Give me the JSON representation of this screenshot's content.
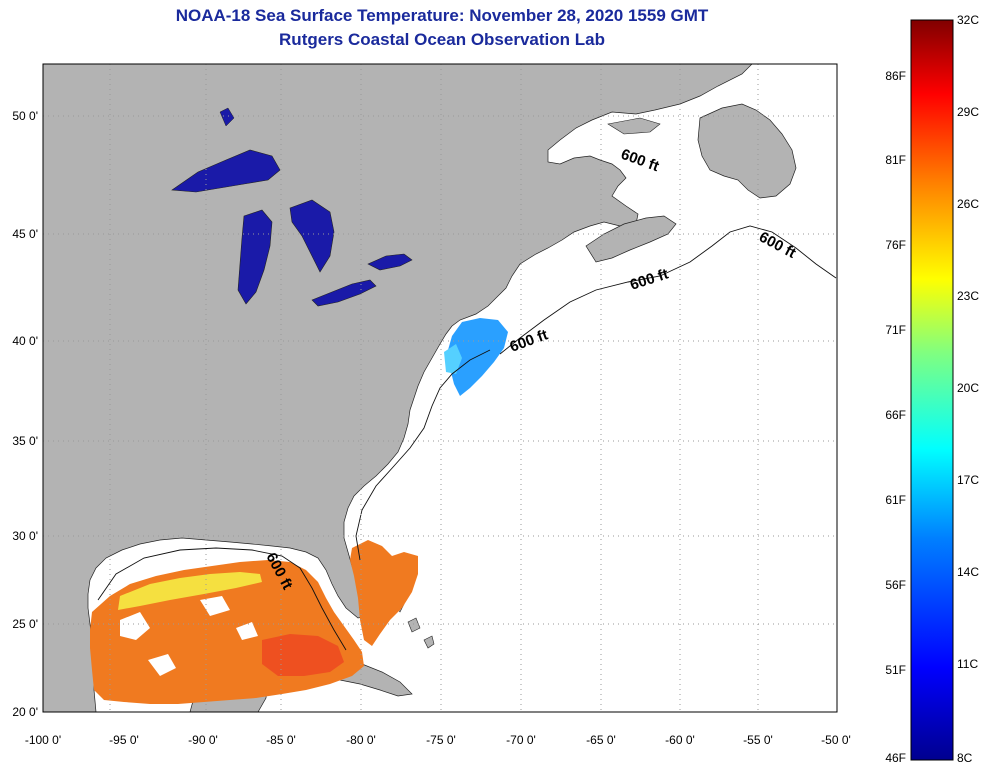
{
  "header": {
    "title": "NOAA-18 Sea Surface Temperature:  November 28, 2020 1559 GMT",
    "subtitle": "Rutgers Coastal Ocean Observation Lab"
  },
  "map": {
    "lon_range": [
      -100,
      -50
    ],
    "lat_range": [
      20,
      52.5
    ],
    "lon_ticks": [
      "-100 0'",
      "-95 0'",
      "-90 0'",
      "-85 0'",
      "-80 0'",
      "-75 0'",
      "-70 0'",
      "-65 0'",
      "-60 0'",
      "-55 0'",
      "-50 0'"
    ],
    "lat_ticks": [
      "20 0'",
      "25 0'",
      "30 0'",
      "35 0'",
      "40 0'",
      "45 0'",
      "50 0'"
    ],
    "contour_label": "600 ft",
    "colors": {
      "land": "#b3b3b3",
      "ocean_no_data": "#ffffff",
      "grid": "#9a9a9a"
    }
  },
  "colorbar": {
    "celsius_labels": [
      "32C",
      "29C",
      "26C",
      "23C",
      "20C",
      "17C",
      "14C",
      "11C",
      "8C"
    ],
    "fahrenheit_labels": [
      "86F",
      "81F",
      "76F",
      "71F",
      "66F",
      "61F",
      "56F",
      "51F",
      "46F"
    ],
    "range_c": [
      8,
      32
    ],
    "colors": [
      "#00008f",
      "#0000ff",
      "#0080ff",
      "#00ffff",
      "#80ff80",
      "#ffff00",
      "#ff8000",
      "#ff0000",
      "#800000"
    ]
  }
}
